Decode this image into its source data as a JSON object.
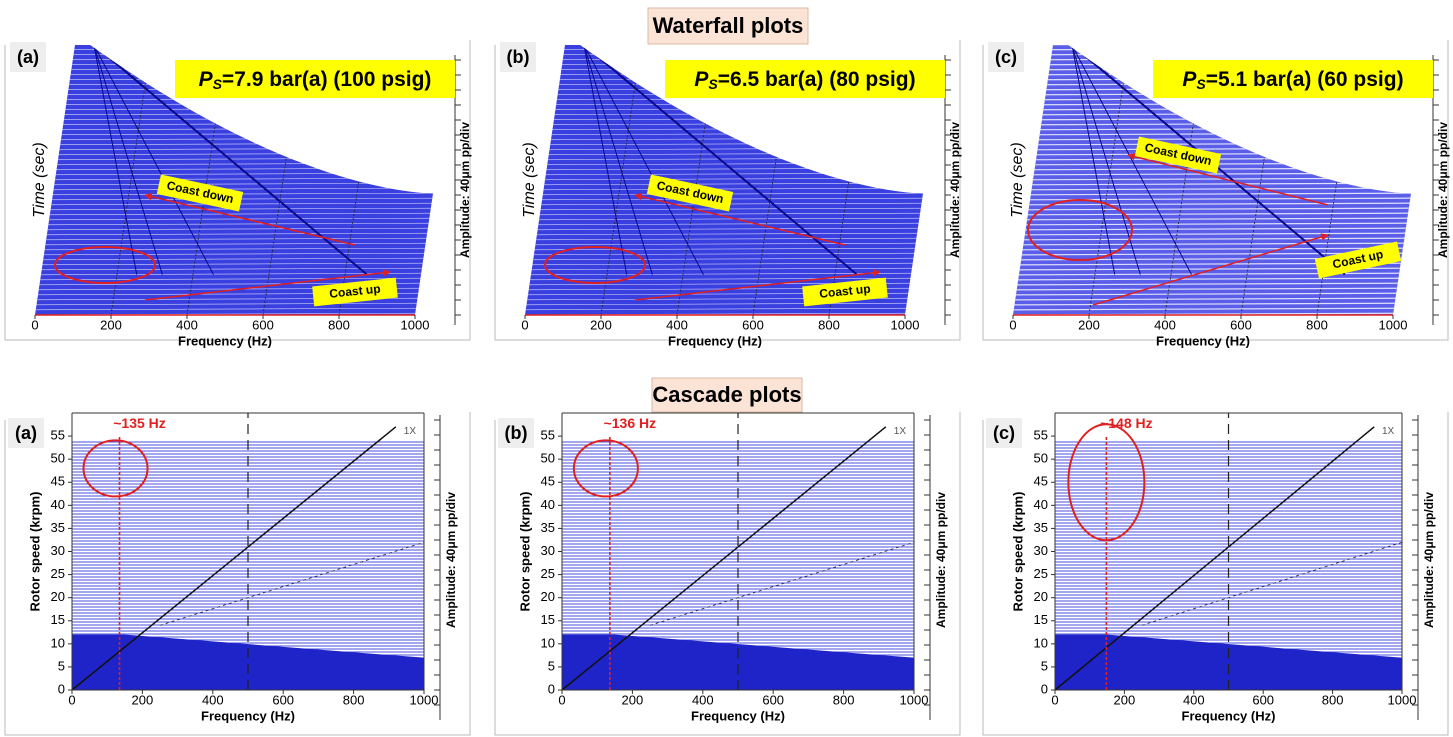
{
  "section_titles": [
    "Waterfall plots",
    "Cascade plots"
  ],
  "chart_data": [
    {
      "type": "waterfall",
      "panel_label": "(a)",
      "annotation": {
        "symbol": "P",
        "subscript": "S",
        "text": "=7.9 bar(a) (100 psig)"
      },
      "x_label": "Frequency (Hz)",
      "y_label": "Time (sec)",
      "amplitude_label": "Amplitude: 40μm pp/div",
      "xlim": [
        0,
        1000
      ],
      "xticks": [
        0,
        200,
        400,
        600,
        800,
        1000
      ],
      "labels": [
        "Coast down",
        "Coast up"
      ]
    },
    {
      "type": "waterfall",
      "panel_label": "(b)",
      "annotation": {
        "symbol": "P",
        "subscript": "S",
        "text": "=6.5 bar(a) (80 psig)"
      },
      "x_label": "Frequency (Hz)",
      "y_label": "Time (sec)",
      "amplitude_label": "Amplitude: 40μm pp/div",
      "xlim": [
        0,
        1000
      ],
      "xticks": [
        0,
        200,
        400,
        600,
        800,
        1000
      ],
      "labels": [
        "Coast down",
        "Coast up"
      ]
    },
    {
      "type": "waterfall",
      "panel_label": "(c)",
      "annotation": {
        "symbol": "P",
        "subscript": "S",
        "text": "=5.1 bar(a) (60 psig)"
      },
      "x_label": "Frequency (Hz)",
      "y_label": "Time (sec)",
      "amplitude_label": "Amplitude: 40μm pp/div",
      "xlim": [
        0,
        1000
      ],
      "xticks": [
        0,
        200,
        400,
        600,
        800,
        1000
      ],
      "labels": [
        "Coast down",
        "Coast up"
      ]
    },
    {
      "type": "cascade",
      "panel_label": "(a)",
      "x_label": "Frequency (Hz)",
      "y_label": "Rotor speed (krpm)",
      "amplitude_label": "Amplitude: 40μm pp/div",
      "xlim": [
        0,
        1000
      ],
      "xticks": [
        0,
        200,
        400,
        600,
        800,
        1000
      ],
      "ylim": [
        0,
        60
      ],
      "yticks": [
        0,
        5,
        10,
        15,
        20,
        25,
        30,
        35,
        40,
        45,
        50,
        55
      ],
      "subsync_frequency": 135,
      "subsync_label": "~135 Hz",
      "order_label": "1X"
    },
    {
      "type": "cascade",
      "panel_label": "(b)",
      "x_label": "Frequency (Hz)",
      "y_label": "Rotor speed (krpm)",
      "amplitude_label": "Amplitude: 40μm pp/div",
      "xlim": [
        0,
        1000
      ],
      "xticks": [
        0,
        200,
        400,
        600,
        800,
        1000
      ],
      "ylim": [
        0,
        60
      ],
      "yticks": [
        0,
        5,
        10,
        15,
        20,
        25,
        30,
        35,
        40,
        45,
        50,
        55
      ],
      "subsync_frequency": 136,
      "subsync_label": "~136 Hz",
      "order_label": "1X"
    },
    {
      "type": "cascade",
      "panel_label": "(c)",
      "x_label": "Frequency (Hz)",
      "y_label": "Rotor speed (krpm)",
      "amplitude_label": "Amplitude: 40μm pp/div",
      "xlim": [
        0,
        1000
      ],
      "xticks": [
        0,
        200,
        400,
        600,
        800,
        1000
      ],
      "ylim": [
        0,
        60
      ],
      "yticks": [
        0,
        5,
        10,
        15,
        20,
        25,
        30,
        35,
        40,
        45,
        50,
        55
      ],
      "subsync_frequency": 148,
      "subsync_label": "~148 Hz",
      "order_label": "1X"
    }
  ]
}
